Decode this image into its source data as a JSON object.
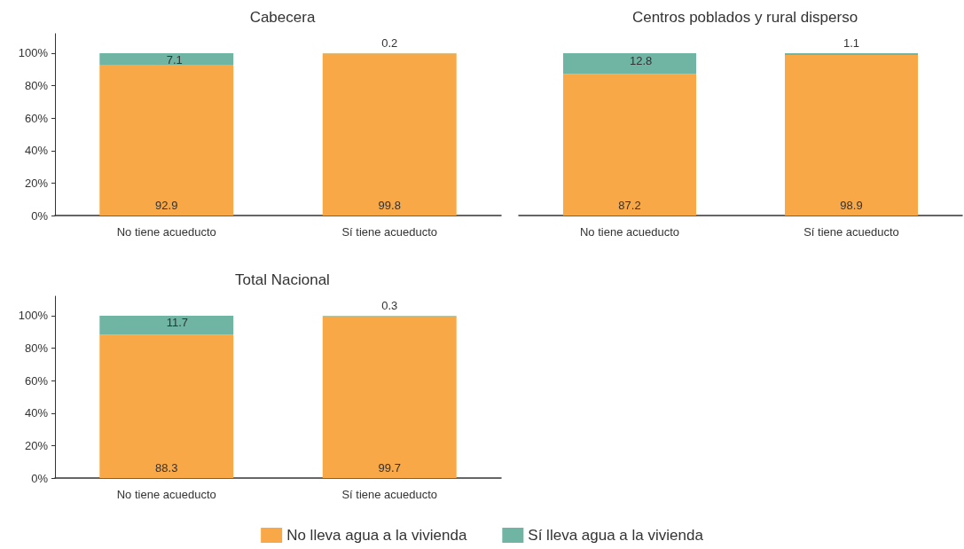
{
  "chart_data": [
    {
      "type": "bar",
      "title": "Cabecera",
      "categories": [
        "No tiene acueducto",
        "Sí tiene acueducto"
      ],
      "stacked": true,
      "data_labels": true,
      "ylim": [
        0,
        112
      ],
      "yticks": [
        {
          "value": 0,
          "label": "0%"
        },
        {
          "value": 20,
          "label": "20%"
        },
        {
          "value": 40,
          "label": "40%"
        },
        {
          "value": 60,
          "label": "60%"
        },
        {
          "value": 80,
          "label": "80%"
        },
        {
          "value": 100,
          "label": "100%"
        }
      ],
      "grid": false,
      "legend": false,
      "series": [
        {
          "color": "#f8a846",
          "values": [
            92.9,
            99.8
          ]
        },
        {
          "color": "#70b5a3",
          "values": [
            7.1,
            0.2
          ]
        }
      ]
    },
    {
      "type": "bar",
      "title": "Centros poblados y rural disperso",
      "categories": [
        "No tiene acueducto",
        "Sí tiene acueducto"
      ],
      "stacked": true,
      "data_labels": true,
      "tick_labels": "x",
      "grid": false,
      "legend": false,
      "series": [
        {
          "color": "#f8a846",
          "values": [
            87.2,
            98.9
          ]
        },
        {
          "color": "#70b5a3",
          "values": [
            12.8,
            1.1
          ]
        }
      ]
    },
    {
      "type": "bar",
      "title": "Total Nacional",
      "categories": [
        "No tiene acueducto",
        "Sí tiene acueducto"
      ],
      "stacked": true,
      "data_labels": true,
      "ylim": [
        0,
        112
      ],
      "yticks": [
        {
          "value": 0,
          "label": "0%"
        },
        {
          "value": 20,
          "label": "20%"
        },
        {
          "value": 40,
          "label": "40%"
        },
        {
          "value": 60,
          "label": "60%"
        },
        {
          "value": 80,
          "label": "80%"
        },
        {
          "value": 100,
          "label": "100%"
        }
      ],
      "grid": false,
      "legend": "bottom",
      "series": [
        {
          "name": "No lleva agua a la vivienda",
          "color": "#f8a846",
          "values": [
            88.3,
            99.7
          ]
        },
        {
          "name": "Sí lleva agua a la vivienda",
          "color": "#70b5a3",
          "values": [
            11.7,
            0.3
          ]
        }
      ]
    }
  ]
}
